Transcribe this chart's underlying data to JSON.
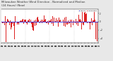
{
  "title_line1": "Milwaukee Weather Wind Direction - Normalized and Median",
  "title_line2": "(24 Hours) (New)",
  "background_color": "#e8e8e8",
  "plot_bg_color": "#ffffff",
  "bar_color": "#dd2222",
  "median_color": "#2222dd",
  "median_value": 0.0,
  "y_min": -5,
  "y_max": 3,
  "n_points": 730,
  "grid_color": "#aaaaaa",
  "legend_bar_label": "Normalized",
  "legend_line_label": "Median",
  "title_fontsize": 2.8,
  "tick_fontsize": 1.8,
  "seed": 42
}
